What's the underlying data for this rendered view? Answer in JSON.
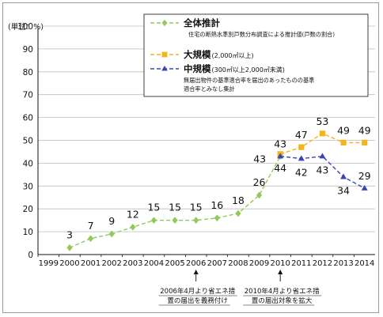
{
  "chart_data": {
    "type": "line",
    "unit_label": "(単位：%)",
    "x": [
      "1999",
      "2000",
      "2001",
      "2002",
      "2003",
      "2004",
      "2005",
      "2006",
      "2007",
      "2008",
      "2009",
      "2010",
      "2011",
      "2012",
      "2013",
      "2014"
    ],
    "ylim": [
      0,
      100
    ],
    "yticks": [
      0,
      10,
      20,
      30,
      40,
      50,
      60,
      70,
      80,
      90,
      100
    ],
    "grid": true,
    "series": [
      {
        "name": "全体推計",
        "note": "住宅の断熱水準別戸数分布調査による推計値(戸数の割合)",
        "color": "#92c95a",
        "style": "dashed",
        "marker": "diamond",
        "values": [
          null,
          3,
          7,
          9,
          12,
          15,
          15,
          15,
          16,
          18,
          26,
          43,
          null,
          null,
          null,
          null
        ]
      },
      {
        "name": "大規模",
        "subname": "(2,000㎡以上)",
        "color": "#f5b41e",
        "style": "dashed",
        "marker": "square",
        "values": [
          null,
          null,
          null,
          null,
          null,
          null,
          null,
          null,
          null,
          null,
          null,
          44,
          47,
          53,
          49,
          49
        ]
      },
      {
        "name": "中規模",
        "subname": "(300㎡以上2,000㎡未満)",
        "note": "無届出物件の基準適合率を届出のあったものの基準適合率とみなし集計",
        "color": "#3b44b4",
        "style": "dashed",
        "marker": "triangle",
        "values": [
          null,
          null,
          null,
          null,
          null,
          null,
          null,
          null,
          null,
          null,
          null,
          43,
          42,
          43,
          34,
          29
        ]
      }
    ],
    "labels": [
      {
        "x": "2000",
        "text": "3"
      },
      {
        "x": "2001",
        "text": "7"
      },
      {
        "x": "2002",
        "text": "9"
      },
      {
        "x": "2003",
        "text": "12"
      },
      {
        "x": "2004",
        "text": "15"
      },
      {
        "x": "2005",
        "text": "15"
      },
      {
        "x": "2006",
        "text": "15"
      },
      {
        "x": "2007",
        "text": "16"
      },
      {
        "x": "2008",
        "text": "18"
      },
      {
        "x": "2009",
        "text": "26"
      },
      {
        "x": "2010",
        "text": "43",
        "near": 43,
        "pos": "left"
      },
      {
        "x": "2010",
        "text": "43",
        "near": 43,
        "pos": "above"
      },
      {
        "x": "2010",
        "text": "44",
        "near": 44,
        "pos": "below"
      },
      {
        "x": "2011",
        "text": "47",
        "near": 47,
        "pos": "above"
      },
      {
        "x": "2011",
        "text": "42",
        "near": 42,
        "pos": "below"
      },
      {
        "x": "2012",
        "text": "53",
        "near": 53,
        "pos": "above"
      },
      {
        "x": "2012",
        "text": "43",
        "near": 43,
        "pos": "below"
      },
      {
        "x": "2013",
        "text": "49",
        "near": 49,
        "pos": "above"
      },
      {
        "x": "2013",
        "text": "34",
        "near": 34,
        "pos": "below"
      },
      {
        "x": "2014",
        "text": "49",
        "near": 49,
        "pos": "above"
      },
      {
        "x": "2014",
        "text": "29",
        "near": 29,
        "pos": "above"
      }
    ],
    "annotations": [
      {
        "x": "2006",
        "lines": [
          "2006年4月より省エネ措",
          "置の届出を義務付け"
        ]
      },
      {
        "x": "2010",
        "lines": [
          "2010年4月より省エネ措",
          "置の届出対象を拡大"
        ]
      }
    ]
  }
}
